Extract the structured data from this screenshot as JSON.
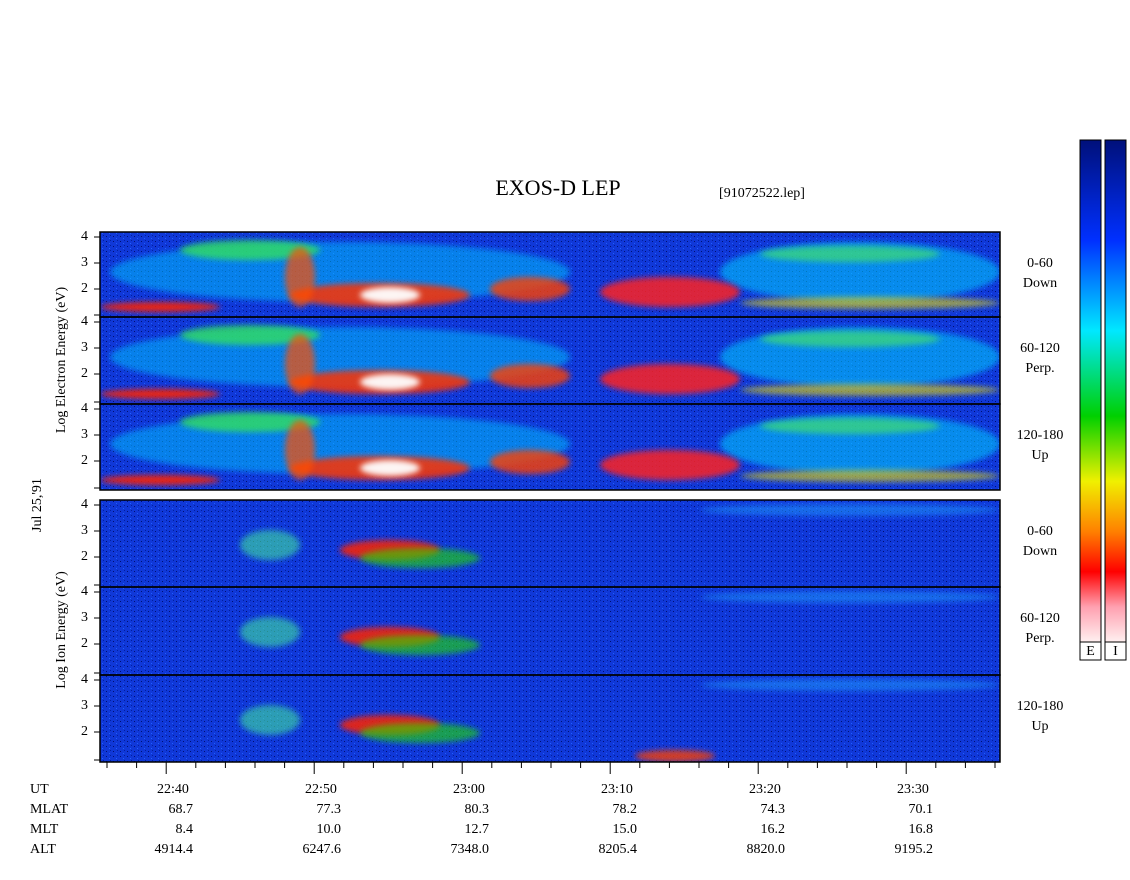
{
  "header": {
    "title": "EXOS-D LEP",
    "file": "[91072522.lep]"
  },
  "axis_labels": {
    "electron": "Log Electron Energy (eV)",
    "ion": "Log Ion Energy (eV)",
    "date": "Jul 25,'91"
  },
  "energy_ticks": [
    "2",
    "3",
    "4"
  ],
  "panels": [
    {
      "angle": "0-60",
      "direction": "Down"
    },
    {
      "angle": "60-120",
      "direction": "Perp."
    },
    {
      "angle": "120-180",
      "direction": "Up"
    },
    {
      "angle": "0-60",
      "direction": "Down"
    },
    {
      "angle": "60-120",
      "direction": "Perp."
    },
    {
      "angle": "120-180",
      "direction": "Up"
    }
  ],
  "time_axis": {
    "rows": [
      {
        "label": "UT",
        "values": [
          "22:40",
          "22:50",
          "23:00",
          "23:10",
          "23:20",
          "23:30"
        ]
      },
      {
        "label": "MLAT",
        "values": [
          "68.7",
          "77.3",
          "80.3",
          "78.2",
          "74.3",
          "70.1"
        ]
      },
      {
        "label": "MLT",
        "values": [
          "8.4",
          "10.0",
          "12.7",
          "15.0",
          "16.2",
          "16.8"
        ]
      },
      {
        "label": "ALT",
        "values": [
          "4914.4",
          "6247.6",
          "7348.0",
          "8205.4",
          "8820.0",
          "9195.2"
        ]
      }
    ]
  },
  "colorbar_labels": [
    "E",
    "I"
  ]
}
